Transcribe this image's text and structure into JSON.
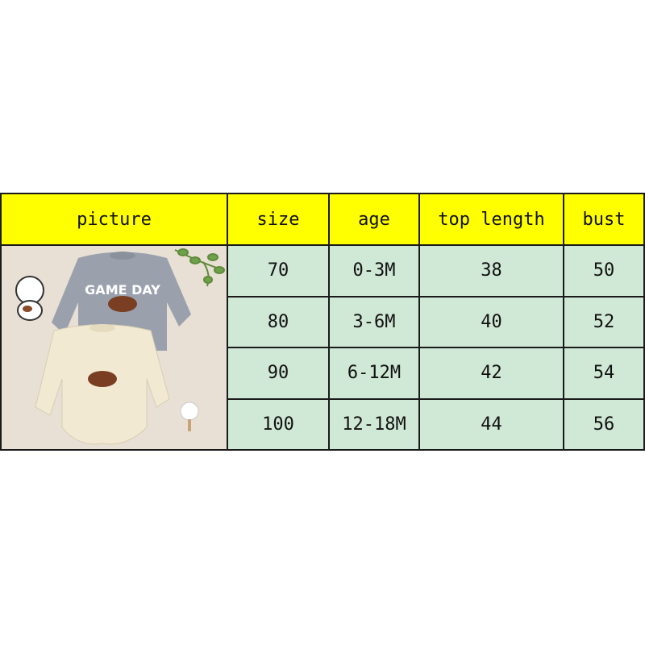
{
  "table": {
    "headers": [
      "picture",
      "size",
      "age",
      "top length",
      "bust"
    ],
    "rows": [
      [
        "70",
        "0-3M",
        "38",
        "50"
      ],
      [
        "80",
        "3-6M",
        "40",
        "52"
      ],
      [
        "90",
        "6-12M",
        "42",
        "54"
      ],
      [
        "100",
        "12-18M",
        "44",
        "56"
      ]
    ]
  },
  "picture": {
    "print_text": "GAME DAY",
    "colors": {
      "gray_romper": "#9aa1ad",
      "cream_romper": "#f2e9d2",
      "football": "#7a3e22"
    }
  }
}
